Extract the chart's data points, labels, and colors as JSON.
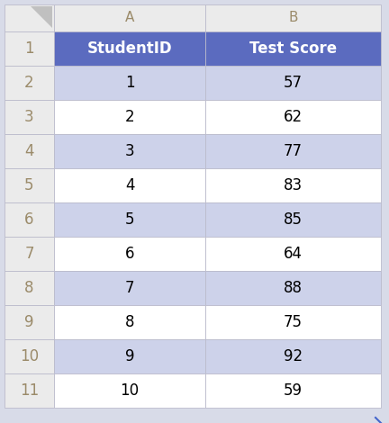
{
  "col_headers": [
    "A",
    "B"
  ],
  "row_numbers": [
    "1",
    "2",
    "3",
    "4",
    "5",
    "6",
    "7",
    "8",
    "9",
    "10",
    "11"
  ],
  "table_headers": [
    "StudentID",
    "Test Score"
  ],
  "student_ids": [
    1,
    2,
    3,
    4,
    5,
    6,
    7,
    8,
    9,
    10
  ],
  "test_scores": [
    57,
    62,
    77,
    83,
    85,
    64,
    88,
    75,
    92,
    59
  ],
  "header_bg_color": "#5B6BBF",
  "header_text_color": "#FFFFFF",
  "alt_row_color": "#CDD2EA",
  "white_row_color": "#FFFFFF",
  "row_num_bg": "#EBEBEB",
  "col_header_bg": "#EBEBEB",
  "col_header_text_color": "#9B8B6A",
  "row_header_text_color": "#9B8B6A",
  "border_color": "#BBBBCC",
  "fig_bg_color": "#D8DBE8",
  "triangle_color": "#C0C0C0"
}
